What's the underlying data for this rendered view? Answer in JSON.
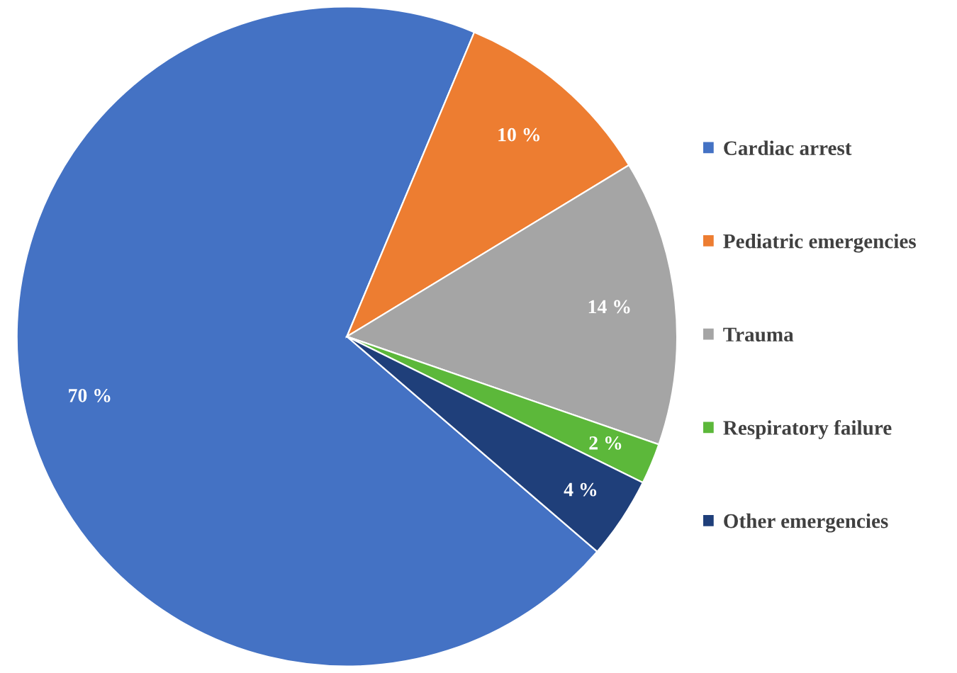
{
  "chart_data": {
    "type": "pie",
    "categories": [
      "Cardiac arrest",
      "Pediatric emergencies",
      "Trauma",
      "Respiratory failure",
      "Other emergencies"
    ],
    "values": [
      70,
      10,
      14,
      2,
      4
    ],
    "value_labels": [
      "70 %",
      "10 %",
      "14 %",
      "2 %",
      "4 %"
    ],
    "colors": [
      "#4472c4",
      "#ed7d31",
      "#a5a5a5",
      "#5cb83a",
      "#1f3f7a"
    ],
    "legend": "right"
  }
}
